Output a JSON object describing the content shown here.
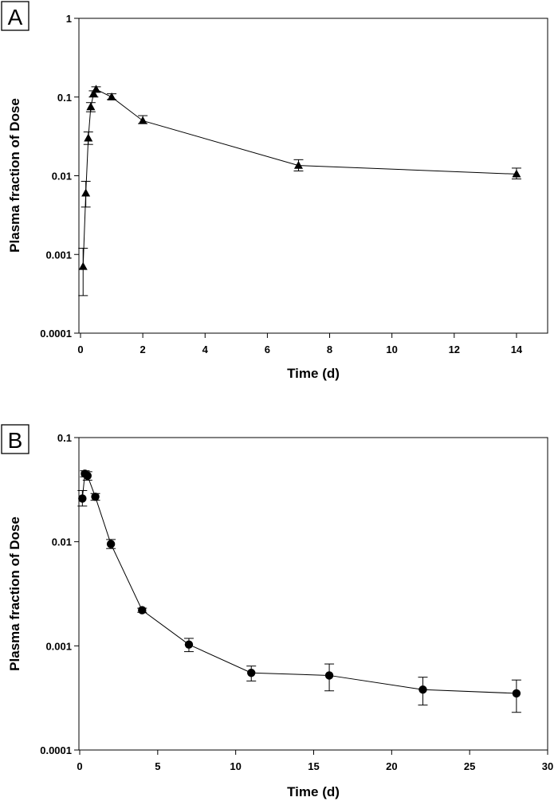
{
  "chart_data": [
    {
      "panel": "A",
      "type": "scatter",
      "marker": "triangle",
      "xlabel": "Time (d)",
      "ylabel": "Plasma fraction of Dose",
      "xlim": [
        0,
        15
      ],
      "ylim": [
        0.0001,
        1
      ],
      "yscale": "log",
      "x_ticks": [
        "0",
        "2",
        "4",
        "6",
        "8",
        "10",
        "12",
        "14"
      ],
      "y_ticks": [
        "0.0001",
        "0.001",
        "0.01",
        "0.1",
        "1"
      ],
      "grid": false,
      "points": [
        {
          "x": 0.083,
          "y": 0.0007,
          "lo": 0.0003,
          "hi": 0.0012
        },
        {
          "x": 0.17,
          "y": 0.006,
          "lo": 0.004,
          "hi": 0.0085
        },
        {
          "x": 0.25,
          "y": 0.03,
          "lo": 0.025,
          "hi": 0.036
        },
        {
          "x": 0.33,
          "y": 0.075,
          "lo": 0.065,
          "hi": 0.085
        },
        {
          "x": 0.42,
          "y": 0.11,
          "lo": 0.1,
          "hi": 0.12
        },
        {
          "x": 0.5,
          "y": 0.125,
          "lo": 0.115,
          "hi": 0.135
        },
        {
          "x": 1,
          "y": 0.1,
          "lo": 0.093,
          "hi": 0.11
        },
        {
          "x": 2,
          "y": 0.05,
          "lo": 0.046,
          "hi": 0.058
        },
        {
          "x": 7,
          "y": 0.0135,
          "lo": 0.0115,
          "hi": 0.016
        },
        {
          "x": 14,
          "y": 0.0105,
          "lo": 0.0091,
          "hi": 0.0125
        }
      ]
    },
    {
      "panel": "B",
      "type": "scatter",
      "marker": "circle",
      "xlabel": "Time (d)",
      "ylabel": "Plasma fraction of Dose",
      "xlim": [
        0,
        30
      ],
      "ylim": [
        0.0001,
        0.1
      ],
      "yscale": "log",
      "x_ticks": [
        "0",
        "5",
        "10",
        "15",
        "20",
        "25",
        "30"
      ],
      "y_ticks": [
        "0.0001",
        "0.001",
        "0.01",
        "0.1"
      ],
      "grid": false,
      "points": [
        {
          "x": 0.17,
          "y": 0.026,
          "lo": 0.022,
          "hi": 0.031
        },
        {
          "x": 0.33,
          "y": 0.045,
          "lo": 0.042,
          "hi": 0.048
        },
        {
          "x": 0.5,
          "y": 0.043,
          "lo": 0.039,
          "hi": 0.047
        },
        {
          "x": 1,
          "y": 0.027,
          "lo": 0.025,
          "hi": 0.029
        },
        {
          "x": 2,
          "y": 0.0095,
          "lo": 0.0086,
          "hi": 0.0105
        },
        {
          "x": 4,
          "y": 0.0022,
          "lo": 0.0021,
          "hi": 0.0023
        },
        {
          "x": 7,
          "y": 0.00103,
          "lo": 0.00088,
          "hi": 0.00118
        },
        {
          "x": 11,
          "y": 0.00055,
          "lo": 0.00046,
          "hi": 0.00064
        },
        {
          "x": 16,
          "y": 0.00052,
          "lo": 0.00037,
          "hi": 0.00067
        },
        {
          "x": 22,
          "y": 0.00038,
          "lo": 0.00027,
          "hi": 0.0005
        },
        {
          "x": 28,
          "y": 0.00035,
          "lo": 0.00023,
          "hi": 0.00047
        }
      ]
    }
  ],
  "panels": {
    "A": {
      "letter": "A"
    },
    "B": {
      "letter": "B"
    }
  }
}
